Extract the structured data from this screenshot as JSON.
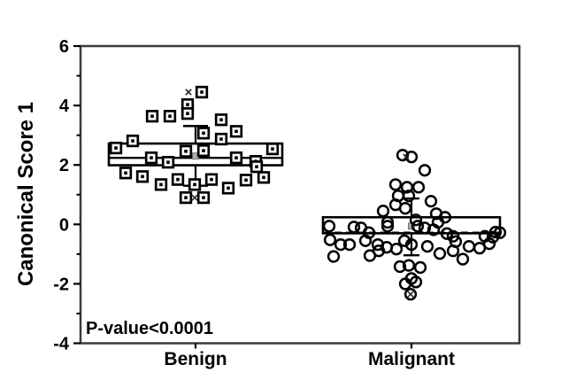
{
  "figure": {
    "background": "#ffffff",
    "frame_color": "#3a3a3a",
    "line_color": "#000000",
    "mean_marker_fill": "#ababab",
    "mean_marker_stroke": "#777777"
  },
  "chart_data": {
    "type": "scatter",
    "subtype": "box-plot-with-jittered-points",
    "title": "",
    "xlabel": "",
    "ylabel": "Canonical Score 1",
    "annotation": "P-value<0.0001",
    "ylim": [
      -4,
      6
    ],
    "y_major_ticks": [
      6,
      4,
      2,
      0,
      -2,
      -4
    ],
    "y_minor_ticks": [
      5,
      3,
      1,
      -1,
      -3
    ],
    "grid": "off",
    "legend": "none",
    "categories": [
      "Benign",
      "Malignant"
    ],
    "groups": [
      {
        "label": "Benign",
        "marker": "open-square-with-center-dot",
        "box": {
          "q1": 1.99,
          "median": 2.24,
          "q3": 2.72,
          "mean": 2.3,
          "whisker_low": 1.3,
          "whisker_high": 3.31,
          "median_style": "solid",
          "percentile_x_marks": [
            [
              4.45,
              -8
            ],
            [
              0.9,
              -1
            ]
          ]
        },
        "points": [
          [
            4.45,
            7
          ],
          [
            4.03,
            -9
          ],
          [
            3.73,
            -9
          ],
          [
            3.64,
            -49
          ],
          [
            3.64,
            -29
          ],
          [
            3.52,
            29
          ],
          [
            3.13,
            46
          ],
          [
            3.07,
            9
          ],
          [
            2.87,
            29
          ],
          [
            2.81,
            -71
          ],
          [
            2.57,
            -90
          ],
          [
            2.54,
            87
          ],
          [
            2.46,
            -11
          ],
          [
            2.48,
            9
          ],
          [
            2.24,
            -50
          ],
          [
            2.09,
            -31
          ],
          [
            2.24,
            46
          ],
          [
            2.12,
            68
          ],
          [
            1.94,
            69
          ],
          [
            1.73,
            -79
          ],
          [
            1.61,
            -60
          ],
          [
            1.34,
            -39
          ],
          [
            1.51,
            -20
          ],
          [
            1.51,
            18
          ],
          [
            1.34,
            -1
          ],
          [
            1.22,
            37
          ],
          [
            1.49,
            57
          ],
          [
            1.58,
            77
          ],
          [
            0.9,
            -11
          ],
          [
            0.9,
            9
          ]
        ]
      },
      {
        "label": "Malignant",
        "marker": "open-circle",
        "box": {
          "q1": -0.3,
          "median": -0.28,
          "q3": 0.24,
          "mean": -0.06,
          "whisker_low": -1.04,
          "whisker_high": 0.87,
          "median_style": "dashed",
          "percentile_x_marks": [
            [
              2.27,
              -6
            ],
            [
              -2.35,
              -1
            ]
          ]
        },
        "points": [
          [
            2.33,
            -10
          ],
          [
            2.27,
            0
          ],
          [
            1.82,
            15
          ],
          [
            1.34,
            -18
          ],
          [
            1.25,
            -5
          ],
          [
            1.25,
            8
          ],
          [
            0.96,
            -15
          ],
          [
            0.96,
            -3
          ],
          [
            0.78,
            22
          ],
          [
            0.66,
            -18
          ],
          [
            0.54,
            -7
          ],
          [
            0.45,
            -32
          ],
          [
            0.36,
            28
          ],
          [
            0.24,
            38
          ],
          [
            0.15,
            5
          ],
          [
            0.07,
            -27
          ],
          [
            0.07,
            30
          ],
          [
            -0.06,
            -93
          ],
          [
            -0.09,
            -65
          ],
          [
            -0.12,
            -57
          ],
          [
            -0.28,
            -48
          ],
          [
            -0.06,
            -27
          ],
          [
            -0.06,
            7
          ],
          [
            -0.12,
            15
          ],
          [
            -0.18,
            25
          ],
          [
            -0.31,
            40
          ],
          [
            -0.4,
            47
          ],
          [
            -0.4,
            83
          ],
          [
            -0.43,
            92
          ],
          [
            -0.26,
            95
          ],
          [
            -0.28,
            100
          ],
          [
            -0.52,
            -92
          ],
          [
            -0.68,
            -80
          ],
          [
            -0.68,
            -70
          ],
          [
            -0.55,
            -52
          ],
          [
            -0.68,
            -38
          ],
          [
            -0.77,
            -28
          ],
          [
            -0.83,
            -17
          ],
          [
            -0.55,
            -8
          ],
          [
            -0.68,
            0
          ],
          [
            -0.74,
            18
          ],
          [
            -0.98,
            32
          ],
          [
            -0.89,
            47
          ],
          [
            -0.58,
            50
          ],
          [
            -0.74,
            65
          ],
          [
            -0.8,
            77
          ],
          [
            -0.65,
            88
          ],
          [
            -1.17,
            58
          ],
          [
            -1.08,
            -88
          ],
          [
            -1.05,
            -47
          ],
          [
            -0.89,
            -37
          ],
          [
            -1.42,
            -13
          ],
          [
            -1.38,
            -3
          ],
          [
            -1.45,
            10
          ],
          [
            -1.82,
            0
          ],
          [
            -1.94,
            5
          ],
          [
            -2.0,
            -7
          ],
          [
            -2.35,
            -1
          ]
        ]
      }
    ]
  }
}
